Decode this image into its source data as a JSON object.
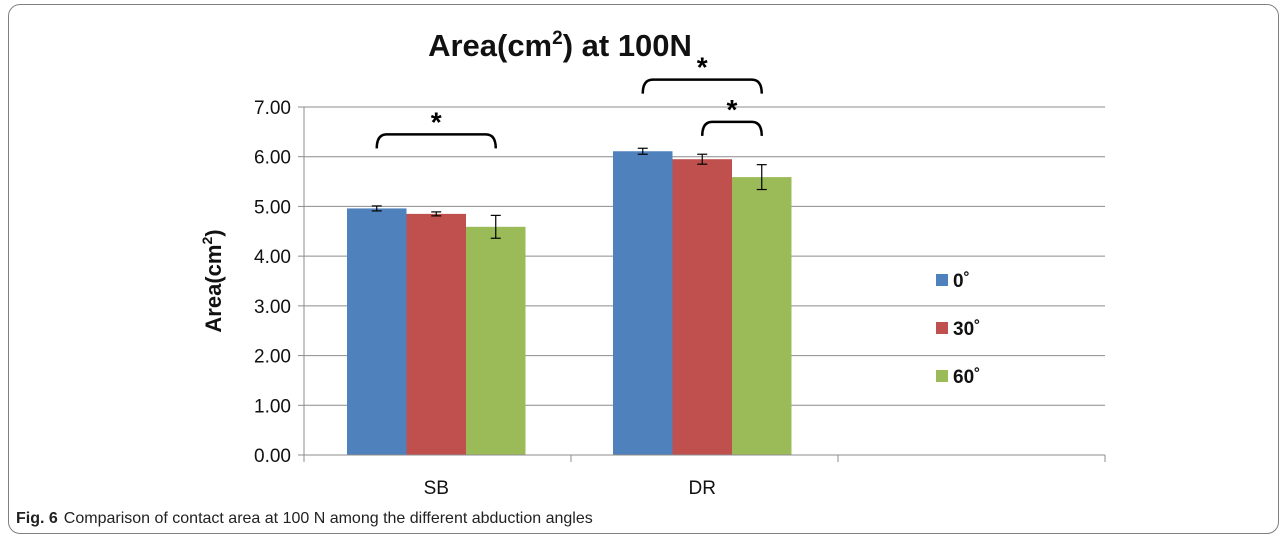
{
  "chart_data": {
    "type": "bar",
    "title": "Area(cm²) at 100N",
    "title_main": "Area(cm",
    "title_sup": "2",
    "title_tail": ") at 100N",
    "ylabel": "Area(cm²)",
    "ylabel_main": "Area(cm",
    "ylabel_sup": "2",
    "ylabel_tail": ")",
    "ylim": [
      0,
      7
    ],
    "yticks": [
      "0.00",
      "1.00",
      "2.00",
      "3.00",
      "4.00",
      "5.00",
      "6.00",
      "7.00"
    ],
    "grid": true,
    "legend_position": "right",
    "categories": [
      "SB",
      "DR"
    ],
    "series": [
      {
        "name": "0˚",
        "color": "#4F81BD",
        "values": [
          4.96,
          6.11
        ],
        "errors": [
          0.05,
          0.06
        ]
      },
      {
        "name": "30˚",
        "color": "#C0504D",
        "values": [
          4.85,
          5.95
        ],
        "errors": [
          0.04,
          0.1
        ]
      },
      {
        "name": "60˚",
        "color": "#9BBB59",
        "values": [
          4.59,
          5.59
        ],
        "errors": [
          0.23,
          0.25
        ]
      }
    ],
    "annotations": [
      {
        "label": "*",
        "category": "SB",
        "from_series": 0,
        "to_series": 2,
        "level": 6.45
      },
      {
        "label": "*",
        "category": "DR",
        "from_series": 0,
        "to_series": 2,
        "level": 7.55
      },
      {
        "label": "*",
        "category": "DR",
        "from_series": 1,
        "to_series": 2,
        "level": 6.7
      }
    ]
  },
  "caption": {
    "label": "Fig. 6",
    "text": "Comparison of contact area at 100 N among the different abduction angles"
  }
}
